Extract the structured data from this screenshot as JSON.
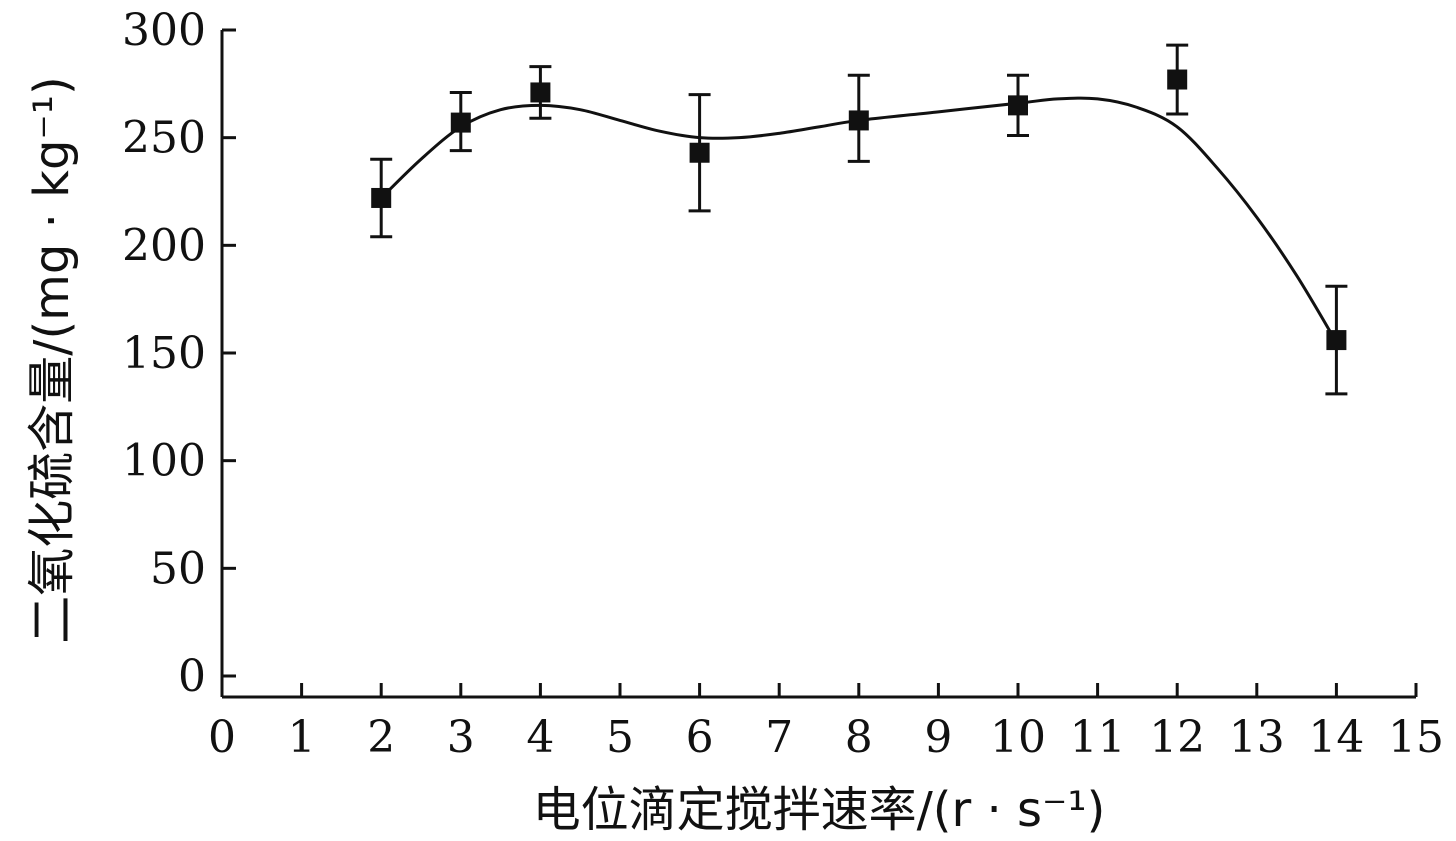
{
  "chart_data": {
    "type": "scatter",
    "xlabel": "电位滴定搅拌速率/(r · s⁻¹)",
    "ylabel": "二氧化硫含量/(mg · kg⁻¹)",
    "xlim": [
      0,
      15
    ],
    "ylim": [
      0,
      300
    ],
    "x_ticks": [
      0,
      1,
      2,
      3,
      4,
      5,
      6,
      7,
      8,
      9,
      10,
      11,
      12,
      13,
      14,
      15
    ],
    "y_ticks": [
      0,
      50,
      100,
      150,
      200,
      250,
      300
    ],
    "grid": false,
    "legend": "none",
    "series": [
      {
        "marker": "square",
        "color": "#111111",
        "points": [
          {
            "x": 2,
            "y": 222,
            "err_low": 204,
            "err_high": 240
          },
          {
            "x": 3,
            "y": 257,
            "err_low": 244,
            "err_high": 271
          },
          {
            "x": 4,
            "y": 271,
            "err_low": 259,
            "err_high": 283
          },
          {
            "x": 6,
            "y": 243,
            "err_low": 216,
            "err_high": 270
          },
          {
            "x": 8,
            "y": 258,
            "err_low": 239,
            "err_high": 279
          },
          {
            "x": 10,
            "y": 265,
            "err_low": 251,
            "err_high": 279
          },
          {
            "x": 12,
            "y": 277,
            "err_low": 261,
            "err_high": 293
          },
          {
            "x": 14,
            "y": 156,
            "err_low": 131,
            "err_high": 181
          }
        ]
      }
    ],
    "fit_curve": [
      {
        "x": 2,
        "y": 222
      },
      {
        "x": 2.5,
        "y": 240
      },
      {
        "x": 3,
        "y": 255
      },
      {
        "x": 3.5,
        "y": 263
      },
      {
        "x": 4,
        "y": 265
      },
      {
        "x": 4.5,
        "y": 263
      },
      {
        "x": 5,
        "y": 258
      },
      {
        "x": 5.5,
        "y": 253
      },
      {
        "x": 6,
        "y": 250
      },
      {
        "x": 6.5,
        "y": 250
      },
      {
        "x": 7,
        "y": 252
      },
      {
        "x": 7.5,
        "y": 255
      },
      {
        "x": 8,
        "y": 258
      },
      {
        "x": 9,
        "y": 262
      },
      {
        "x": 10,
        "y": 266
      },
      {
        "x": 10.5,
        "y": 268
      },
      {
        "x": 11,
        "y": 268
      },
      {
        "x": 11.5,
        "y": 264
      },
      {
        "x": 12,
        "y": 255
      },
      {
        "x": 12.5,
        "y": 236
      },
      {
        "x": 13,
        "y": 213
      },
      {
        "x": 13.5,
        "y": 186
      },
      {
        "x": 14,
        "y": 155
      }
    ]
  }
}
